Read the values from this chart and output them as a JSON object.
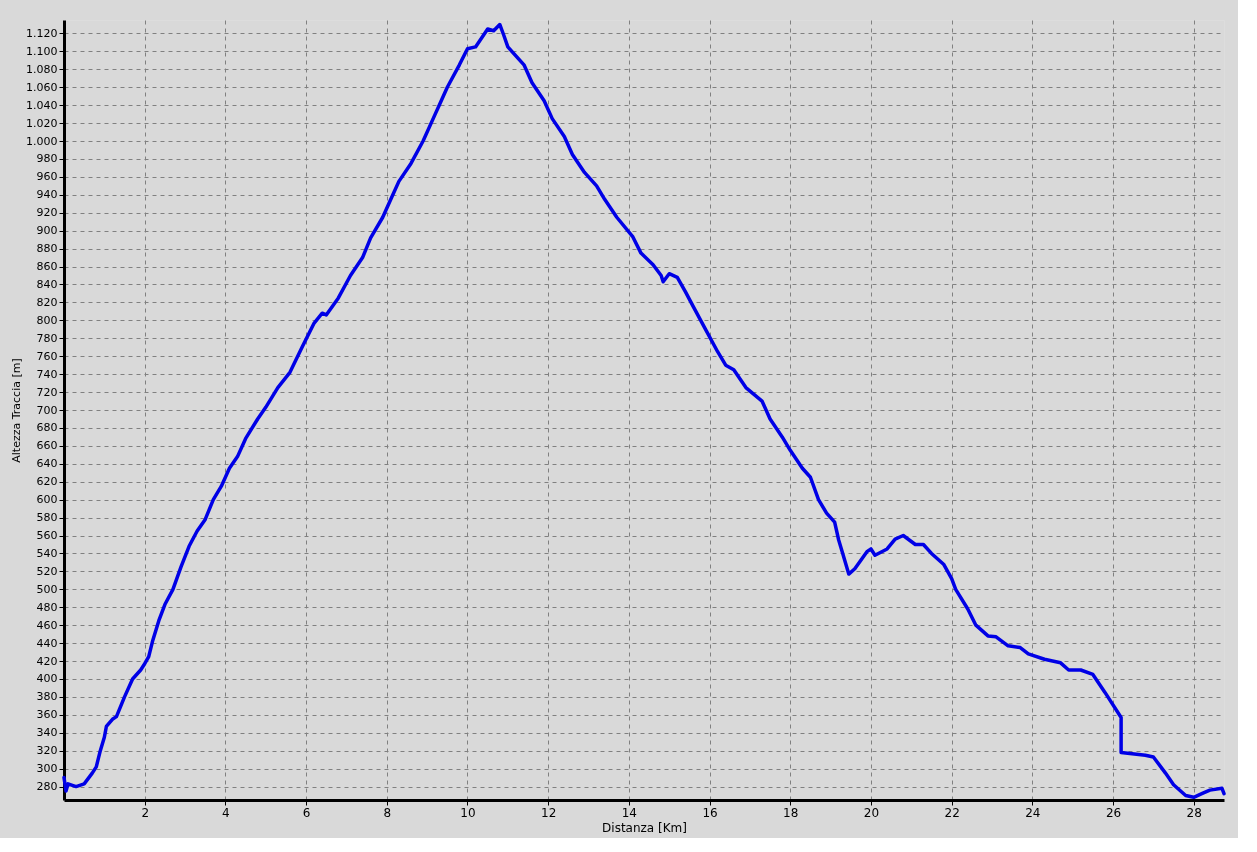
{
  "chart_data": {
    "type": "line",
    "xlabel": "Distanza [Km]",
    "ylabel": "Altezza Traccia [m]",
    "xlim": [
      0,
      28.75
    ],
    "xticks": [
      2,
      4,
      6,
      8,
      10,
      12,
      14,
      16,
      18,
      20,
      22,
      24,
      26,
      28
    ],
    "ylim": [
      265,
      1135
    ],
    "yticks": [
      280,
      300,
      320,
      340,
      360,
      380,
      400,
      420,
      440,
      460,
      480,
      500,
      520,
      540,
      560,
      580,
      600,
      620,
      640,
      660,
      680,
      700,
      720,
      740,
      760,
      780,
      800,
      820,
      840,
      860,
      880,
      900,
      920,
      940,
      960,
      980,
      {
        "value": 1000,
        "label": "1.000"
      },
      {
        "value": 1020,
        "label": "1.020"
      },
      {
        "value": 1040,
        "label": "1.040"
      },
      {
        "value": 1060,
        "label": "1.060"
      },
      {
        "value": 1080,
        "label": "1.080"
      },
      {
        "value": 1100,
        "label": "1.100"
      },
      {
        "value": 1120,
        "label": "1.120"
      }
    ],
    "grid": true,
    "line_style": "solid",
    "marker": "none",
    "series": [
      {
        "color": "#0000e6",
        "x": [
          0,
          0.05,
          0.1,
          0.3,
          0.5,
          0.7,
          0.8,
          0.9,
          1.0,
          1.05,
          1.2,
          1.3,
          1.5,
          1.7,
          1.9,
          2.0,
          2.1,
          2.2,
          2.35,
          2.5,
          2.7,
          2.9,
          3.1,
          3.3,
          3.5,
          3.7,
          3.9,
          4.1,
          4.3,
          4.5,
          4.8,
          5.0,
          5.3,
          5.6,
          5.9,
          6.2,
          6.4,
          6.5,
          6.8,
          7.1,
          7.4,
          7.6,
          7.9,
          8.1,
          8.3,
          8.6,
          8.9,
          9.2,
          9.3,
          9.5,
          9.8,
          10.0,
          10.2,
          10.5,
          10.65,
          10.8,
          10.9,
          11.0,
          11.4,
          11.6,
          11.9,
          12.1,
          12.4,
          12.6,
          12.9,
          13.2,
          13.4,
          13.7,
          14.1,
          14.3,
          14.6,
          14.8,
          14.85,
          15.0,
          15.2,
          15.4,
          15.6,
          15.9,
          16.2,
          16.4,
          16.6,
          16.9,
          17.3,
          17.5,
          17.8,
          18.0,
          18.3,
          18.5,
          18.7,
          18.9,
          19.1,
          19.2,
          19.3,
          19.45,
          19.6,
          19.9,
          20.0,
          20.1,
          20.4,
          20.6,
          20.8,
          21.1,
          21.3,
          21.5,
          21.8,
          22.0,
          22.1,
          22.4,
          22.6,
          22.9,
          23.1,
          23.4,
          23.7,
          23.9,
          24.3,
          24.7,
          24.9,
          25.2,
          25.5,
          25.8,
          26.2,
          26.2,
          26.8,
          27.0,
          27.3,
          27.5,
          27.8,
          28.0,
          28.2,
          28.4,
          28.7,
          28.75
        ],
        "values": [
          290,
          275,
          283,
          280,
          283,
          295,
          302,
          320,
          335,
          347,
          355,
          358,
          380,
          400,
          410,
          417,
          425,
          443,
          465,
          483,
          500,
          525,
          548,
          565,
          578,
          600,
          615,
          635,
          648,
          668,
          690,
          703,
          725,
          742,
          770,
          797,
          808,
          806,
          825,
          850,
          870,
          892,
          915,
          935,
          955,
          975,
          1000,
          1030,
          1040,
          1060,
          1085,
          1103,
          1105,
          1125,
          1123,
          1130,
          1118,
          1105,
          1085,
          1065,
          1045,
          1025,
          1005,
          985,
          965,
          950,
          935,
          915,
          893,
          875,
          862,
          850,
          843,
          852,
          848,
          832,
          815,
          790,
          765,
          750,
          745,
          725,
          710,
          690,
          670,
          655,
          635,
          625,
          600,
          585,
          575,
          555,
          540,
          517,
          523,
          542,
          545,
          538,
          545,
          556,
          560,
          550,
          550,
          540,
          528,
          512,
          500,
          478,
          460,
          448,
          447,
          437,
          435,
          428,
          422,
          418,
          410,
          410,
          405,
          385,
          357,
          318,
          315,
          313,
          295,
          282,
          270,
          268,
          272,
          276,
          278,
          272
        ]
      }
    ]
  }
}
